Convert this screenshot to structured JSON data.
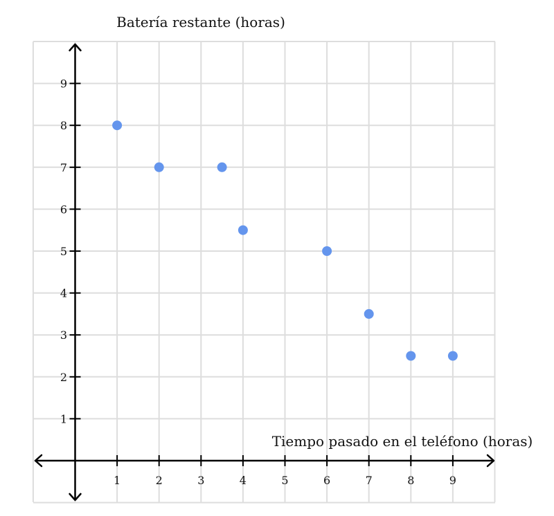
{
  "chart_data": {
    "type": "scatter",
    "xlabel": "Tiempo pasado en el teléfono (horas)",
    "ylabel": "Batería restante (horas)",
    "x_ticks": [
      "1",
      "2",
      "3",
      "4",
      "5",
      "6",
      "7",
      "8",
      "9"
    ],
    "y_ticks": [
      "1",
      "2",
      "3",
      "4",
      "5",
      "6",
      "7",
      "8",
      "9"
    ],
    "xlim": [
      -1,
      10
    ],
    "ylim": [
      -1,
      10
    ],
    "grid": true,
    "points": [
      {
        "x": 1,
        "y": 8
      },
      {
        "x": 2,
        "y": 7
      },
      {
        "x": 3.5,
        "y": 7
      },
      {
        "x": 4,
        "y": 5.5
      },
      {
        "x": 6,
        "y": 5
      },
      {
        "x": 7,
        "y": 3.5
      },
      {
        "x": 8,
        "y": 2.5
      },
      {
        "x": 9,
        "y": 2.5
      }
    ],
    "colors": {
      "point": "#6495ED",
      "grid": "#DDDDDD",
      "axis": "#000000"
    }
  }
}
